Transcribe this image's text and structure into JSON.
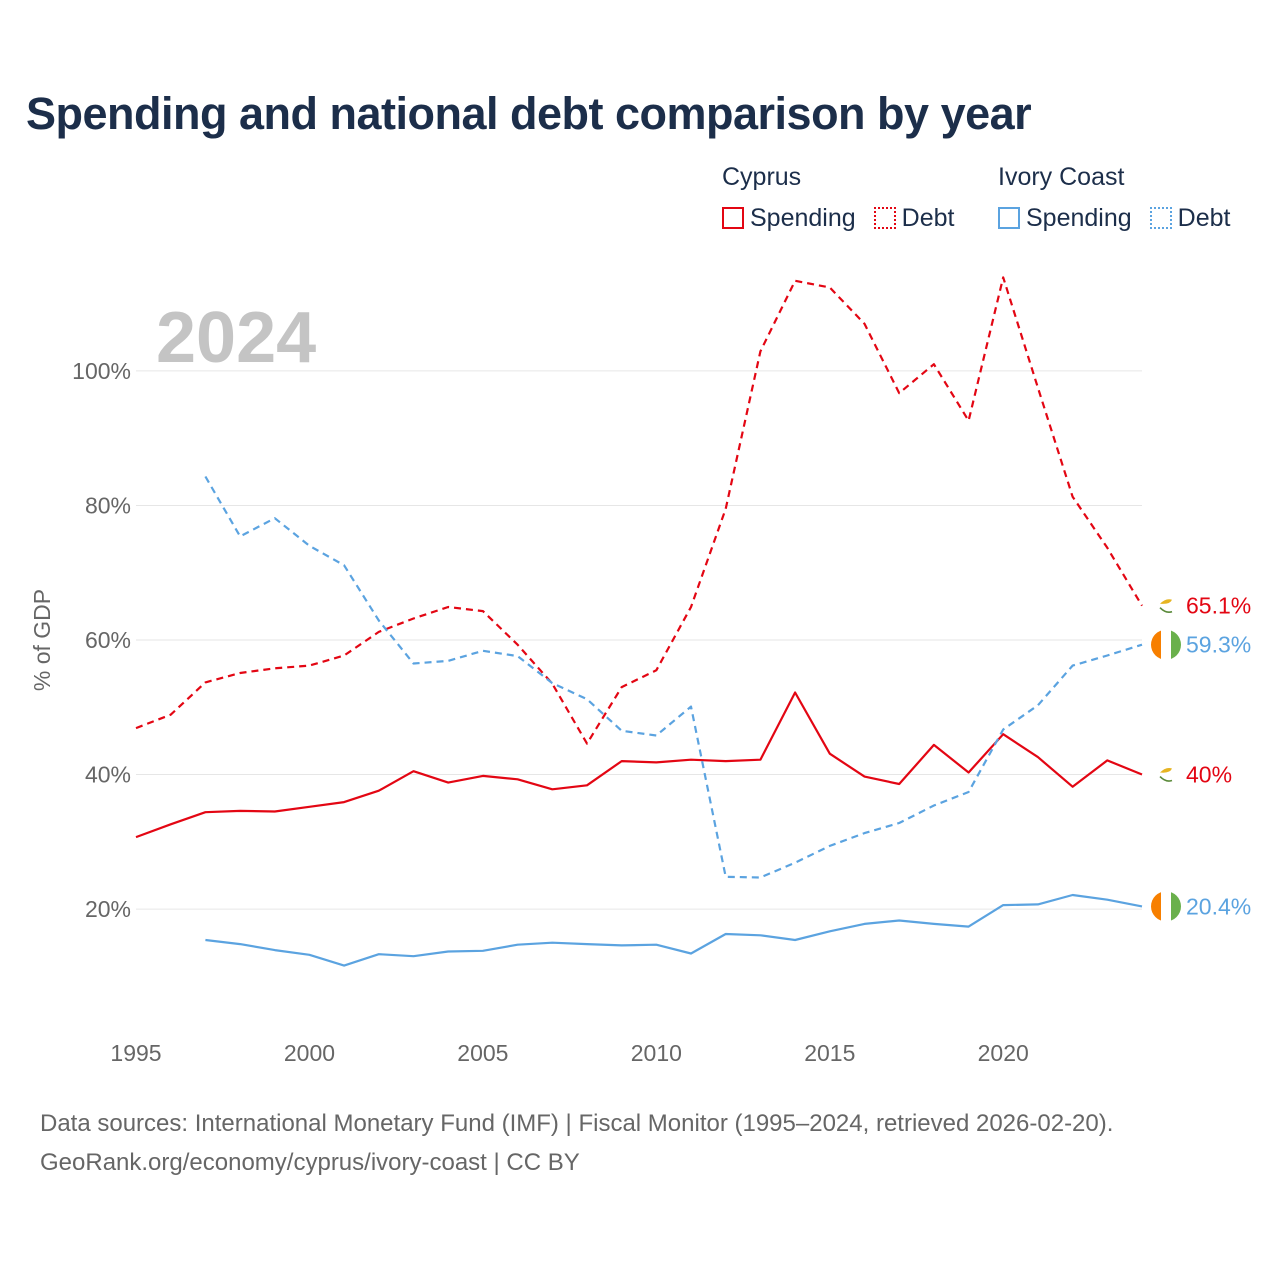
{
  "title": "Spending and national debt comparison by year",
  "year_label": "2024",
  "legend": {
    "groups": [
      {
        "name": "Cyprus",
        "items": [
          {
            "label": "Spending",
            "style": "solid",
            "color": "#e30613"
          },
          {
            "label": "Debt",
            "style": "dotted",
            "color": "#e30613"
          }
        ]
      },
      {
        "name": "Ivory Coast",
        "items": [
          {
            "label": "Spending",
            "style": "solid",
            "color": "#5ba3e0"
          },
          {
            "label": "Debt",
            "style": "dotted",
            "color": "#5ba3e0"
          }
        ]
      }
    ]
  },
  "footer": {
    "line1": "Data sources: International Monetary Fund (IMF) | Fiscal Monitor (1995–2024, retrieved 2026-02-20).",
    "line2": "GeoRank.org/economy/cyprus/ivory-coast | CC BY"
  },
  "chart_data": {
    "type": "line",
    "title": "Spending and national debt comparison by year",
    "xlabel": "",
    "ylabel": "% of GDP",
    "xlim": [
      1995,
      2024
    ],
    "ylim": [
      5,
      115
    ],
    "x_ticks": [
      1995,
      2000,
      2005,
      2010,
      2015,
      2020
    ],
    "y_ticks": [
      20,
      40,
      60,
      80,
      100
    ],
    "y_tick_labels": [
      "20%",
      "40%",
      "60%",
      "80%",
      "100%"
    ],
    "grid": true,
    "series": [
      {
        "name": "Cyprus Debt",
        "country": "Cyprus",
        "metric": "Debt",
        "color": "#e30613",
        "dash": true,
        "end_label": "65.1%",
        "flag": "cyprus",
        "x": [
          1995,
          1996,
          1997,
          1998,
          1999,
          2000,
          2001,
          2002,
          2003,
          2004,
          2005,
          2006,
          2007,
          2008,
          2009,
          2010,
          2011,
          2012,
          2013,
          2014,
          2015,
          2016,
          2017,
          2018,
          2019,
          2020,
          2021,
          2022,
          2023,
          2024
        ],
        "values": [
          46.9,
          48.9,
          53.7,
          55.1,
          55.8,
          56.2,
          57.7,
          61.2,
          63.2,
          64.9,
          64.3,
          59.3,
          53.5,
          44.6,
          53.0,
          55.5,
          64.9,
          79.5,
          102.9,
          113.4,
          112.4,
          107.0,
          96.7,
          101.0,
          92.6,
          113.9,
          97.5,
          81.3,
          73.7,
          65.1
        ]
      },
      {
        "name": "Cyprus Spending",
        "country": "Cyprus",
        "metric": "Spending",
        "color": "#e30613",
        "dash": false,
        "end_label": "40%",
        "flag": "cyprus",
        "x": [
          1995,
          1996,
          1997,
          1998,
          1999,
          2000,
          2001,
          2002,
          2003,
          2004,
          2005,
          2006,
          2007,
          2008,
          2009,
          2010,
          2011,
          2012,
          2013,
          2014,
          2015,
          2016,
          2017,
          2018,
          2019,
          2020,
          2021,
          2022,
          2023,
          2024
        ],
        "values": [
          30.7,
          32.6,
          34.4,
          34.6,
          34.5,
          35.2,
          35.9,
          37.6,
          40.5,
          38.8,
          39.8,
          39.3,
          37.8,
          38.4,
          42.0,
          41.8,
          42.2,
          42.0,
          42.2,
          52.2,
          43.1,
          39.7,
          38.6,
          44.4,
          40.3,
          46.0,
          42.6,
          38.2,
          42.1,
          40.0
        ]
      },
      {
        "name": "Ivory Coast Debt",
        "country": "Ivory Coast",
        "metric": "Debt",
        "color": "#5ba3e0",
        "dash": true,
        "end_label": "59.3%",
        "flag": "ivory-coast",
        "x": [
          1997,
          1998,
          1999,
          2000,
          2001,
          2002,
          2003,
          2004,
          2005,
          2006,
          2007,
          2008,
          2009,
          2010,
          2011,
          2012,
          2013,
          2014,
          2015,
          2016,
          2017,
          2018,
          2019,
          2020,
          2021,
          2022,
          2023,
          2024
        ],
        "values": [
          84.3,
          75.4,
          78.1,
          74.0,
          71.1,
          62.9,
          56.5,
          56.9,
          58.4,
          57.6,
          53.6,
          51.2,
          46.5,
          45.8,
          50.1,
          24.8,
          24.7,
          26.9,
          29.4,
          31.3,
          32.8,
          35.4,
          37.4,
          46.7,
          50.3,
          56.2,
          57.7,
          59.3
        ]
      },
      {
        "name": "Ivory Coast Spending",
        "country": "Ivory Coast",
        "metric": "Spending",
        "color": "#5ba3e0",
        "dash": false,
        "end_label": "20.4%",
        "flag": "ivory-coast",
        "x": [
          1997,
          1998,
          1999,
          2000,
          2001,
          2002,
          2003,
          2004,
          2005,
          2006,
          2007,
          2008,
          2009,
          2010,
          2011,
          2012,
          2013,
          2014,
          2015,
          2016,
          2017,
          2018,
          2019,
          2020,
          2021,
          2022,
          2023,
          2024
        ],
        "values": [
          15.4,
          14.8,
          13.9,
          13.2,
          11.6,
          13.3,
          13.0,
          13.7,
          13.8,
          14.7,
          15.0,
          14.8,
          14.6,
          14.7,
          13.4,
          16.3,
          16.1,
          15.4,
          16.7,
          17.8,
          18.3,
          17.8,
          17.4,
          20.6,
          20.7,
          22.1,
          21.4,
          20.4
        ]
      }
    ]
  }
}
